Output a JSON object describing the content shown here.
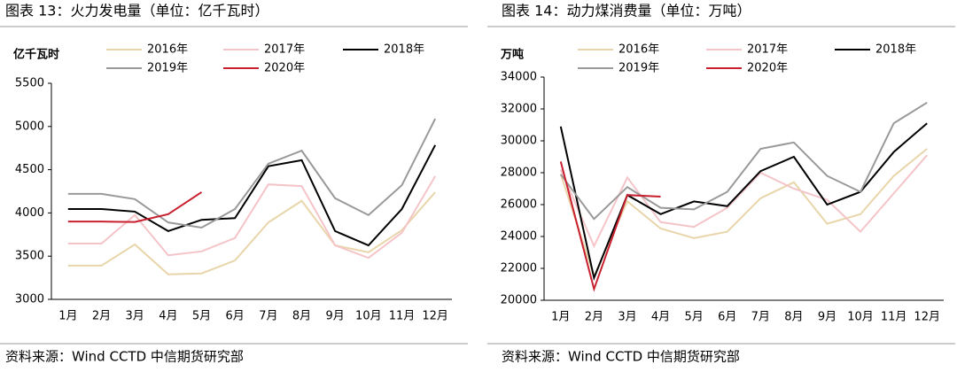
{
  "chart_data": [
    {
      "type": "line",
      "title": "图表 13：火力发电量（单位：亿千瓦时）",
      "y_label": "亿千瓦时",
      "source": "资料来源：Wind CCTD 中信期货研究部",
      "categories": [
        "1月",
        "2月",
        "3月",
        "4月",
        "5月",
        "6月",
        "7月",
        "8月",
        "9月",
        "10月",
        "11月",
        "12月"
      ],
      "ylim": [
        3000,
        5500
      ],
      "yticks": [
        3000,
        3500,
        4000,
        4500,
        5000,
        5500
      ],
      "series": [
        {
          "name": "2016年",
          "color": "#e8d5a9",
          "values": [
            3390,
            3390,
            3635,
            3290,
            3300,
            3450,
            3890,
            4140,
            3625,
            3545,
            3800,
            4240
          ]
        },
        {
          "name": "2017年",
          "color": "#f4c4c8",
          "values": [
            3645,
            3645,
            3975,
            3510,
            3555,
            3710,
            4330,
            4310,
            3625,
            3480,
            3770,
            4425
          ]
        },
        {
          "name": "2018年",
          "color": "#000000",
          "values": [
            4045,
            4045,
            4015,
            3790,
            3920,
            3940,
            4540,
            4610,
            3790,
            3625,
            4045,
            4785
          ]
        },
        {
          "name": "2019年",
          "color": "#999999",
          "values": [
            4220,
            4220,
            4160,
            3890,
            3830,
            4045,
            4570,
            4720,
            4170,
            3975,
            4320,
            5090
          ]
        },
        {
          "name": "2020年",
          "color": "#c8202f",
          "values": [
            3900,
            3900,
            3895,
            3985,
            4240,
            null,
            null,
            null,
            null,
            null,
            null,
            null
          ]
        }
      ]
    },
    {
      "type": "line",
      "title": "图表 14：动力煤消费量（单位：万吨）",
      "y_label": "万吨",
      "source": "资料来源：Wind CCTD 中信期货研究部",
      "categories": [
        "1月",
        "2月",
        "3月",
        "4月",
        "5月",
        "6月",
        "7月",
        "8月",
        "9月",
        "10月",
        "11月",
        "12月"
      ],
      "ylim": [
        20000,
        34000
      ],
      "yticks": [
        20000,
        22000,
        24000,
        26000,
        28000,
        30000,
        32000,
        34000
      ],
      "series": [
        {
          "name": "2016年",
          "color": "#e8d5a9",
          "values": [
            27900,
            21500,
            26200,
            24500,
            23900,
            24300,
            26400,
            27400,
            24800,
            25400,
            27800,
            29500
          ]
        },
        {
          "name": "2017年",
          "color": "#f4c4c8",
          "values": [
            28200,
            23400,
            27700,
            24900,
            24600,
            25800,
            28000,
            27000,
            26300,
            24300,
            26700,
            29100
          ]
        },
        {
          "name": "2018年",
          "color": "#000000",
          "values": [
            30900,
            21400,
            26600,
            25400,
            26200,
            25900,
            28100,
            29000,
            26000,
            26800,
            29300,
            31100
          ]
        },
        {
          "name": "2019年",
          "color": "#999999",
          "values": [
            27900,
            25100,
            27100,
            25800,
            25700,
            26800,
            29500,
            29900,
            27800,
            26800,
            31100,
            32400
          ]
        },
        {
          "name": "2020年",
          "color": "#c8202f",
          "values": [
            28700,
            20700,
            26600,
            26500,
            null,
            null,
            null,
            null,
            null,
            null,
            null,
            null
          ]
        }
      ]
    }
  ]
}
